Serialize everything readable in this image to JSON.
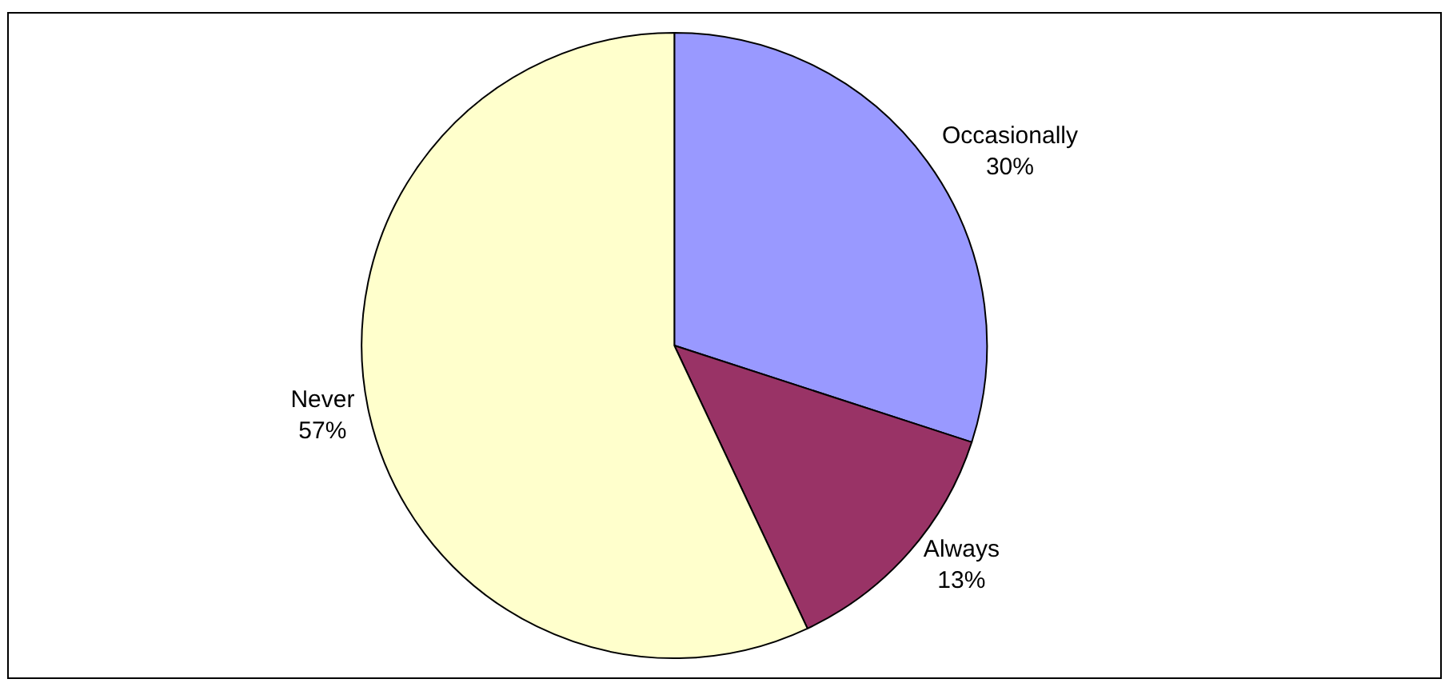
{
  "chart_data": {
    "type": "pie",
    "categories": [
      "Occasionally",
      "Always",
      "Never"
    ],
    "values": [
      30,
      13,
      57
    ],
    "colors": [
      "#9999ff",
      "#993366",
      "#ffffcc"
    ],
    "value_labels": [
      "30%",
      "13%",
      "57%"
    ],
    "legend": false
  }
}
